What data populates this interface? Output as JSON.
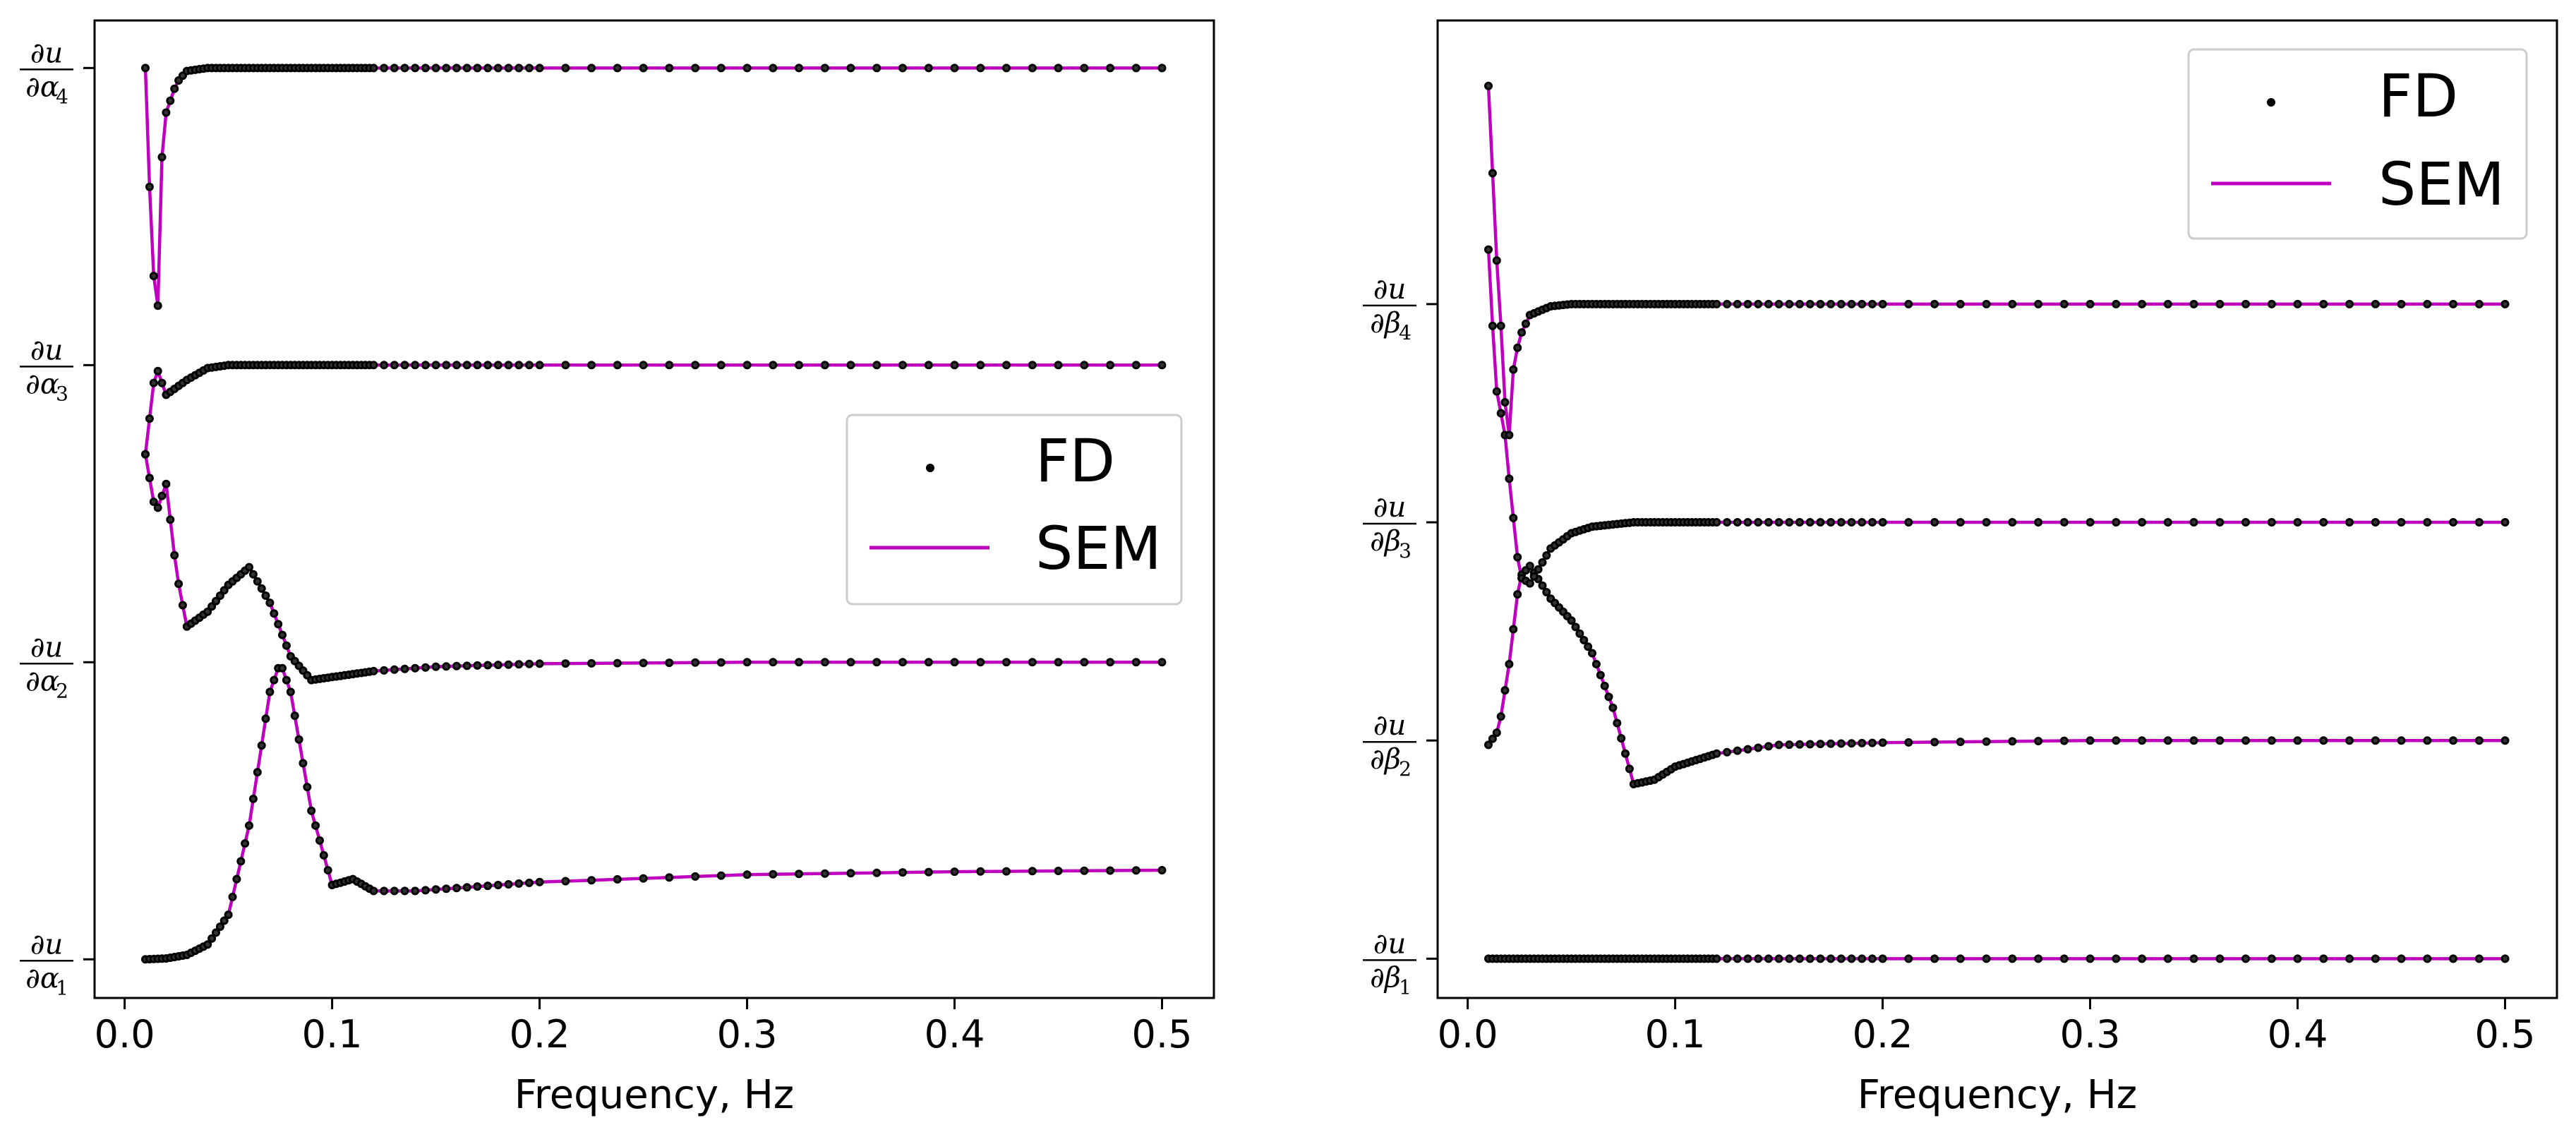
{
  "colors": {
    "sem": "#bf00bf",
    "fd": "#333333",
    "axis": "#000000"
  },
  "chart_data": [
    {
      "type": "line",
      "xlabel": "Frequency, Hz",
      "xlim": [
        -0.0145,
        0.525
      ],
      "xticks": [
        "0.0",
        "0.1",
        "0.2",
        "0.3",
        "0.4",
        "0.5"
      ],
      "legend": {
        "entries": [
          "FD",
          "SEM"
        ],
        "placement": "center-right"
      },
      "ylabels": [
        {
          "num": "∂u",
          "den": "∂α",
          "sub": "1",
          "level": 0
        },
        {
          "num": "∂u",
          "den": "∂α",
          "sub": "2",
          "level": 1
        },
        {
          "num": "∂u",
          "den": "∂α",
          "sub": "3",
          "level": 2
        },
        {
          "num": "∂u",
          "den": "∂α",
          "sub": "4",
          "level": 3
        }
      ],
      "ylim": [
        -0.13,
        3.16
      ],
      "series": [
        {
          "name": "∂u/∂α1",
          "points": [
            [
              0.01,
              0.0
            ],
            [
              0.02,
              0.003
            ],
            [
              0.03,
              0.015
            ],
            [
              0.04,
              0.05
            ],
            [
              0.05,
              0.15
            ],
            [
              0.06,
              0.45
            ],
            [
              0.07,
              0.9
            ],
            [
              0.075,
              1.0
            ],
            [
              0.08,
              0.9
            ],
            [
              0.09,
              0.5
            ],
            [
              0.1,
              0.25
            ],
            [
              0.11,
              0.27
            ],
            [
              0.12,
              0.23
            ],
            [
              0.14,
              0.23
            ],
            [
              0.2,
              0.26
            ],
            [
              0.3,
              0.285
            ],
            [
              0.4,
              0.295
            ],
            [
              0.5,
              0.3
            ]
          ]
        },
        {
          "name": "∂u/∂α2",
          "points": [
            [
              0.01,
              1.7
            ],
            [
              0.015,
              1.5
            ],
            [
              0.02,
              1.6
            ],
            [
              0.025,
              1.3
            ],
            [
              0.03,
              1.12
            ],
            [
              0.04,
              1.17
            ],
            [
              0.05,
              1.26
            ],
            [
              0.06,
              1.32
            ],
            [
              0.07,
              1.2
            ],
            [
              0.08,
              1.02
            ],
            [
              0.09,
              0.94
            ],
            [
              0.1,
              0.95
            ],
            [
              0.12,
              0.97
            ],
            [
              0.15,
              0.985
            ],
            [
              0.2,
              0.995
            ],
            [
              0.3,
              1.0
            ],
            [
              0.5,
              1.0
            ]
          ]
        },
        {
          "name": "∂u/∂α3",
          "points": [
            [
              0.01,
              1.7
            ],
            [
              0.015,
              2.0
            ],
            [
              0.02,
              1.9
            ],
            [
              0.03,
              1.95
            ],
            [
              0.04,
              1.99
            ],
            [
              0.05,
              2.0
            ],
            [
              0.1,
              2.0
            ],
            [
              0.5,
              2.0
            ]
          ]
        },
        {
          "name": "∂u/∂α4",
          "points": [
            [
              0.01,
              3.0
            ],
            [
              0.012,
              2.6
            ],
            [
              0.014,
              2.3
            ],
            [
              0.016,
              2.2
            ],
            [
              0.018,
              2.7
            ],
            [
              0.02,
              2.85
            ],
            [
              0.025,
              2.95
            ],
            [
              0.03,
              2.99
            ],
            [
              0.04,
              3.0
            ],
            [
              0.05,
              3.0
            ],
            [
              0.5,
              3.0
            ]
          ]
        }
      ]
    },
    {
      "type": "line",
      "xlabel": "Frequency, Hz",
      "xlim": [
        -0.0145,
        0.525
      ],
      "xticks": [
        "0.0",
        "0.1",
        "0.2",
        "0.3",
        "0.4",
        "0.5"
      ],
      "legend": {
        "entries": [
          "FD",
          "SEM"
        ],
        "placement": "top-right"
      },
      "ylabels": [
        {
          "num": "∂u",
          "den": "∂β",
          "sub": "1",
          "level": 0
        },
        {
          "num": "∂u",
          "den": "∂β",
          "sub": "2",
          "level": 1
        },
        {
          "num": "∂u",
          "den": "∂β",
          "sub": "3",
          "level": 2
        },
        {
          "num": "∂u",
          "den": "∂β",
          "sub": "4",
          "level": 3
        }
      ],
      "ylim": [
        -0.18,
        4.3
      ],
      "series": [
        {
          "name": "∂u/∂β1",
          "points": [
            [
              0.01,
              0.0
            ],
            [
              0.5,
              0.0
            ]
          ]
        },
        {
          "name": "∂u/∂β2",
          "points": [
            [
              0.01,
              0.98
            ],
            [
              0.015,
              1.05
            ],
            [
              0.02,
              1.35
            ],
            [
              0.025,
              1.75
            ],
            [
              0.03,
              1.8
            ],
            [
              0.04,
              1.65
            ],
            [
              0.05,
              1.55
            ],
            [
              0.06,
              1.4
            ],
            [
              0.07,
              1.15
            ],
            [
              0.08,
              0.8
            ],
            [
              0.09,
              0.82
            ],
            [
              0.1,
              0.88
            ],
            [
              0.12,
              0.94
            ],
            [
              0.15,
              0.98
            ],
            [
              0.2,
              0.99
            ],
            [
              0.3,
              1.0
            ],
            [
              0.5,
              1.0
            ]
          ]
        },
        {
          "name": "∂u/∂β3",
          "points": [
            [
              0.01,
              3.25
            ],
            [
              0.012,
              2.9
            ],
            [
              0.014,
              2.6
            ],
            [
              0.018,
              2.4
            ],
            [
              0.02,
              2.2
            ],
            [
              0.025,
              1.75
            ],
            [
              0.03,
              1.72
            ],
            [
              0.035,
              1.8
            ],
            [
              0.04,
              1.88
            ],
            [
              0.05,
              1.95
            ],
            [
              0.06,
              1.98
            ],
            [
              0.08,
              2.0
            ],
            [
              0.1,
              2.0
            ],
            [
              0.5,
              2.0
            ]
          ]
        },
        {
          "name": "∂u/∂β4",
          "points": [
            [
              0.01,
              4.0
            ],
            [
              0.012,
              3.6
            ],
            [
              0.014,
              3.2
            ],
            [
              0.016,
              2.9
            ],
            [
              0.018,
              2.55
            ],
            [
              0.02,
              2.4
            ],
            [
              0.022,
              2.7
            ],
            [
              0.025,
              2.85
            ],
            [
              0.03,
              2.95
            ],
            [
              0.04,
              2.99
            ],
            [
              0.05,
              3.0
            ],
            [
              0.5,
              3.0
            ]
          ]
        }
      ]
    }
  ]
}
